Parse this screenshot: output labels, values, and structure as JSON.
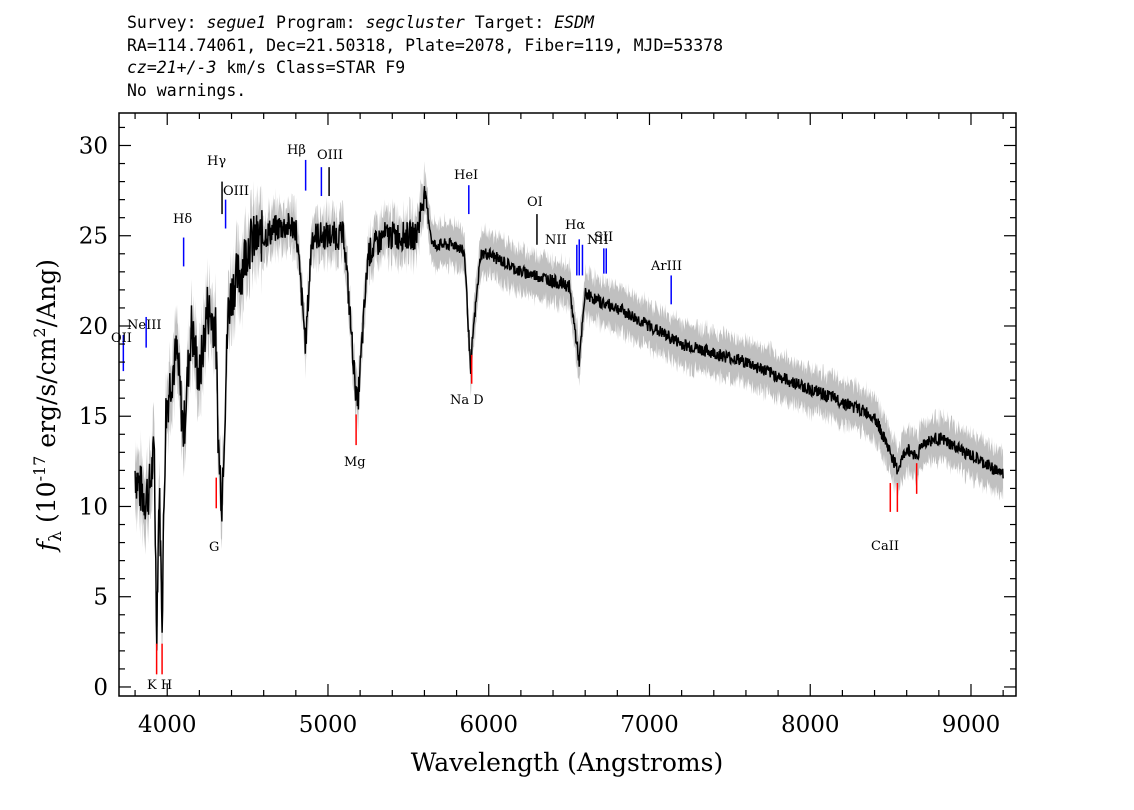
{
  "header": {
    "survey_label": "Survey:",
    "survey_value": "segue1",
    "program_label": "Program:",
    "program_value": "segcluster",
    "target_label": "Target:",
    "target_value": "ESDM",
    "line2": "RA=114.74061, Dec=21.50318, Plate=2078, Fiber=119, MJD=53378",
    "cz_value": "cz=21+/-3",
    "cz_rest": " km/s Class=STAR F9",
    "warnings": "No warnings."
  },
  "chart_data": {
    "type": "line",
    "xlabel": "Wavelength (Angstroms)",
    "ylabel_prefix": "f",
    "ylabel_sub": "λ",
    "ylabel_units_a": " (10",
    "ylabel_exp": "-17",
    "ylabel_units_b": " erg/s/cm",
    "ylabel_exp2": "2",
    "ylabel_units_c": "/Ang)",
    "xlim": [
      3700,
      9280
    ],
    "ylim": [
      -0.5,
      31.8
    ],
    "xticks": [
      4000,
      5000,
      6000,
      7000,
      8000,
      9000
    ],
    "yticks": [
      0,
      5,
      10,
      15,
      20,
      25,
      30
    ],
    "xtick_labels": [
      "4000",
      "5000",
      "6000",
      "7000",
      "8000",
      "9000"
    ],
    "ytick_labels": [
      "0",
      "5",
      "10",
      "15",
      "20",
      "25",
      "30"
    ],
    "grid": false,
    "colors": {
      "flux": "#000000",
      "error": "#c0c0c0",
      "emission": "#0000ff",
      "absorption": "#ff0000"
    },
    "series": [
      {
        "x": [
          3800,
          3830,
          3860,
          3890,
          3920,
          3934,
          3950,
          3968,
          3990,
          4020,
          4060,
          4102,
          4150,
          4200,
          4250,
          4300,
          4320,
          4340,
          4380,
          4420,
          4460,
          4500,
          4600,
          4700,
          4800,
          4861,
          4900,
          5000,
          5100,
          5167,
          5184,
          5250,
          5350,
          5450,
          5550,
          5600,
          5650,
          5700,
          5800,
          5850,
          5890,
          5896,
          5950,
          6000,
          6100,
          6200,
          6300,
          6400,
          6500,
          6563,
          6600,
          6700,
          6800,
          6900,
          7000,
          7100,
          7200,
          7400,
          7600,
          7800,
          8000,
          8200,
          8400,
          8498,
          8542,
          8600,
          8662,
          8700,
          8800,
          8900,
          9000,
          9100,
          9200
        ],
        "y": [
          12,
          11,
          10.5,
          11,
          13,
          3,
          11,
          4,
          15,
          17,
          18.5,
          14,
          20,
          17,
          21,
          20,
          13,
          10.5,
          21,
          22.5,
          23,
          24.5,
          25,
          25.5,
          25.5,
          19,
          25,
          25,
          25,
          17,
          15.5,
          24,
          25,
          25,
          25,
          27.5,
          24.5,
          24.5,
          24.5,
          24,
          17,
          19,
          24,
          24,
          23.5,
          23,
          22.8,
          22.5,
          22.2,
          18,
          21.8,
          21.3,
          21,
          20.5,
          20,
          19.5,
          19,
          18.5,
          18,
          17.2,
          16.5,
          15.8,
          15,
          13,
          12,
          13.2,
          12.8,
          13.5,
          13.8,
          13.3,
          12.8,
          12.3,
          11.8
        ]
      }
    ],
    "emission_lines": [
      {
        "label": "OII",
        "x": 3727
      },
      {
        "label": "NeIII",
        "x": 3869
      },
      {
        "label": "Hδ",
        "x": 4102
      },
      {
        "label": "Hγ",
        "x": 4341
      },
      {
        "label": "OIII",
        "x": 4363
      },
      {
        "label": "Hβ",
        "x": 4861
      },
      {
        "label": "OIII",
        "x": 4959
      },
      {
        "label": "OIII",
        "x": 5007
      },
      {
        "label": "HeI",
        "x": 5876
      },
      {
        "label": "OI",
        "x": 6300
      },
      {
        "label": "NII",
        "x": 6548
      },
      {
        "label": "Hα",
        "x": 6563
      },
      {
        "label": "NII",
        "x": 6583
      },
      {
        "label": "SII",
        "x": 6716
      },
      {
        "label": "SII",
        "x": 6731
      },
      {
        "label": "ArIII",
        "x": 7135
      }
    ],
    "absorption_lines": [
      {
        "label": "K",
        "x": 3934
      },
      {
        "label": "H",
        "x": 3968
      },
      {
        "label": "G",
        "x": 4305
      },
      {
        "label": "Mg",
        "x": 5175
      },
      {
        "label": "Na D",
        "x": 5894
      },
      {
        "label": "CaII",
        "x": 8498
      },
      {
        "label": "CaII",
        "x": 8542
      },
      {
        "label": "CaII",
        "x": 8662
      }
    ],
    "label_texts": {
      "oii": "OII",
      "neiii": "NeIII",
      "hdelta": "Hδ",
      "hgamma": "Hγ",
      "oiii": "OIII",
      "hbeta": "Hβ",
      "hei": "HeI",
      "oi": "OI",
      "nii1": "NII",
      "halpha": "Hα",
      "nii2": "NII",
      "sii": "SII",
      "ariii": "ArIII",
      "kh": "K H",
      "g": "G",
      "mg": "Mg",
      "nad": "Na D",
      "caii": "CaII"
    }
  }
}
